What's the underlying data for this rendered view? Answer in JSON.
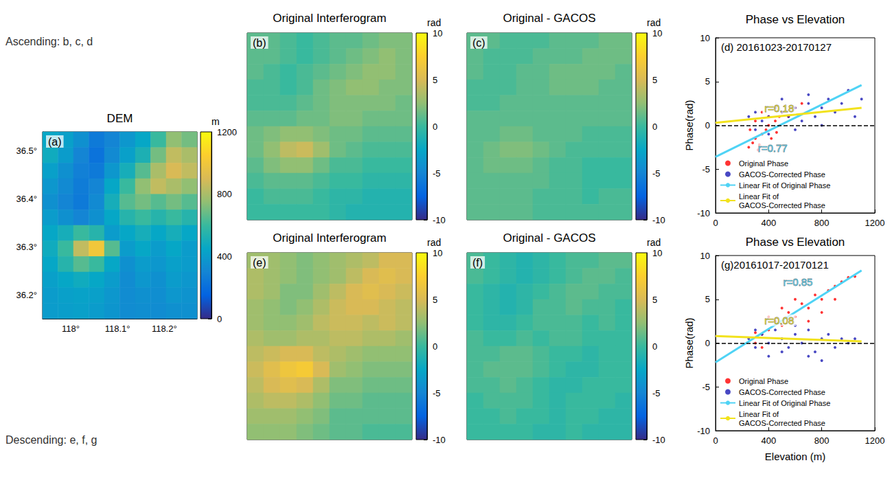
{
  "row_labels": [
    "Ascending: b, c, d",
    "Descending: e, f, g"
  ],
  "chart_data": [
    {
      "type": "heatmap",
      "label": "(a)",
      "title": "DEM",
      "xlim": [
        117.94,
        118.27
      ],
      "ylim": [
        36.15,
        36.54
      ],
      "xticks": [
        {
          "value": 118,
          "label": "118°"
        },
        {
          "value": 118.1,
          "label": "118.1°"
        },
        {
          "value": 118.2,
          "label": "118.2°"
        }
      ],
      "yticks": [
        {
          "value": 36.2,
          "label": "36.2°"
        },
        {
          "value": 36.3,
          "label": "36.3°"
        },
        {
          "value": 36.4,
          "label": "36.4°"
        },
        {
          "value": 36.5,
          "label": "36.5°"
        }
      ],
      "cells": [
        [
          450,
          420,
          350,
          250,
          300,
          380,
          450,
          600,
          750,
          700
        ],
        [
          480,
          400,
          300,
          220,
          320,
          420,
          520,
          700,
          850,
          800
        ],
        [
          420,
          350,
          280,
          250,
          380,
          500,
          650,
          800,
          900,
          850
        ],
        [
          380,
          320,
          260,
          300,
          450,
          600,
          750,
          850,
          800,
          750
        ],
        [
          350,
          300,
          250,
          320,
          500,
          650,
          700,
          650,
          700,
          650
        ],
        [
          400,
          350,
          300,
          350,
          450,
          550,
          600,
          550,
          600,
          550
        ],
        [
          450,
          500,
          600,
          550,
          400,
          450,
          500,
          450,
          500,
          450
        ],
        [
          480,
          600,
          850,
          1000,
          650,
          400,
          450,
          400,
          450,
          400
        ],
        [
          450,
          550,
          650,
          600,
          450,
          350,
          400,
          380,
          420,
          400
        ],
        [
          420,
          450,
          480,
          450,
          400,
          330,
          380,
          350,
          400,
          380
        ],
        [
          400,
          420,
          430,
          420,
          380,
          330,
          350,
          340,
          380,
          360
        ],
        [
          400,
          410,
          420,
          400,
          370,
          330,
          340,
          330,
          350,
          350
        ]
      ],
      "colorbar": {
        "range": [
          0,
          1200
        ],
        "ticks": [
          0,
          400,
          800,
          1200
        ],
        "label": "m"
      }
    },
    {
      "type": "heatmap",
      "label": "(b)",
      "title": "Original Interferogram",
      "tick_labels": false,
      "cells": [
        [
          1,
          1,
          0.5,
          0,
          0.5,
          1,
          1,
          1.5,
          2,
          2
        ],
        [
          1,
          1,
          0.5,
          0,
          0.5,
          1,
          1.5,
          2,
          2.5,
          2
        ],
        [
          1,
          0.5,
          0,
          0.5,
          1,
          1.5,
          2,
          2.5,
          2.5,
          2
        ],
        [
          0.5,
          0.5,
          0,
          0.5,
          1.5,
          2,
          2.5,
          2.5,
          2,
          2
        ],
        [
          0.5,
          0.5,
          0.5,
          1,
          1.5,
          2,
          2,
          2,
          2,
          1.5
        ],
        [
          1,
          1,
          1,
          1.5,
          1.5,
          2,
          2,
          1.5,
          1.5,
          1.5
        ],
        [
          1.5,
          2,
          2.5,
          2.5,
          2,
          1.5,
          1.5,
          1,
          1,
          1
        ],
        [
          1.5,
          2.5,
          4,
          4.5,
          3,
          1.5,
          1,
          0.5,
          0.5,
          0.5
        ],
        [
          1,
          2,
          2.5,
          2.5,
          1.5,
          0.5,
          0.5,
          0,
          0,
          0
        ],
        [
          0.5,
          1,
          1,
          1,
          0.5,
          0,
          0,
          -0.5,
          -0.5,
          -0.5
        ],
        [
          0,
          0.5,
          0.5,
          0.5,
          0,
          -0.5,
          -0.5,
          -1,
          -1,
          -1
        ],
        [
          0,
          0,
          0,
          0,
          0,
          -0.5,
          -1,
          -1,
          -1,
          -1
        ]
      ],
      "colorbar": {
        "range": [
          -10,
          10
        ],
        "ticks": [
          -10,
          -5,
          0,
          5,
          10
        ],
        "label": "rad"
      }
    },
    {
      "type": "heatmap",
      "label": "(c)",
      "title": "Original - GACOS",
      "tick_labels": false,
      "cells": [
        [
          1,
          1,
          0.5,
          0.5,
          0.5,
          1,
          1,
          1,
          1.5,
          1.5
        ],
        [
          1,
          0.5,
          0.5,
          0.5,
          1,
          1,
          1,
          1.5,
          1.5,
          1.5
        ],
        [
          1,
          0.5,
          0.5,
          1,
          1,
          1.5,
          1.5,
          1.5,
          1.5,
          1
        ],
        [
          0.5,
          0.5,
          0.5,
          1,
          1,
          1.5,
          1.5,
          1.5,
          1,
          1
        ],
        [
          0.5,
          0.5,
          1,
          1,
          1,
          1,
          1,
          1,
          1,
          1
        ],
        [
          1,
          1,
          1,
          1,
          1,
          1,
          1,
          1,
          1,
          1
        ],
        [
          1,
          1,
          1.5,
          1.5,
          1,
          1,
          1,
          0.5,
          0.5,
          0.5
        ],
        [
          1,
          1.5,
          2,
          2,
          1.5,
          1,
          0.5,
          0.5,
          0.5,
          0.5
        ],
        [
          1,
          1.5,
          1.5,
          1.5,
          1,
          0.5,
          0.5,
          0,
          0,
          0
        ],
        [
          1,
          1,
          1,
          1,
          1,
          0.5,
          0.5,
          0,
          0,
          0
        ],
        [
          1,
          1,
          1,
          1,
          0.5,
          0.5,
          0.5,
          0,
          0.5,
          0.5
        ],
        [
          1,
          1,
          1,
          1,
          0.5,
          0.5,
          0.5,
          0.5,
          0.5,
          0.5
        ]
      ],
      "colorbar": {
        "range": [
          -10,
          10
        ],
        "ticks": [
          -10,
          -5,
          0,
          5,
          10
        ],
        "label": "rad"
      }
    },
    {
      "type": "scatter",
      "label": "(d) 20161023-20170127",
      "title": "Phase vs Elevation",
      "ylabel": "Phase(rad)",
      "xlim": [
        0,
        1200
      ],
      "xticks": [
        0,
        400,
        800,
        1200
      ],
      "ylim": [
        -10,
        10
      ],
      "yticks": [
        -10,
        -5,
        0,
        5,
        10
      ],
      "grid": false,
      "legend": "lower left",
      "series": [
        {
          "name": "Original Phase",
          "type": "scatter",
          "marker": "circle",
          "color": "#ff0000",
          "x": [
            250,
            280,
            300,
            320,
            350,
            380,
            400,
            420,
            450,
            480,
            300,
            260,
            350,
            500,
            550,
            600,
            400,
            330,
            460,
            650
          ],
          "values": [
            -2.5,
            -2,
            -1.5,
            -2.8,
            -1,
            -0.5,
            0,
            -1.5,
            0.5,
            1,
            0.5,
            -0.5,
            1.5,
            1.5,
            1,
            2,
            1,
            -2.2,
            -0.8,
            2.5
          ]
        },
        {
          "name": "GACOS-Corrected Phase",
          "type": "scatter",
          "marker": "circle",
          "color": "#1a1ab4",
          "x": [
            250,
            300,
            350,
            400,
            450,
            500,
            550,
            600,
            650,
            700,
            750,
            800,
            850,
            900,
            950,
            1000,
            1050,
            300,
            400,
            500,
            600,
            700,
            800,
            1100
          ],
          "values": [
            1,
            1.5,
            0.5,
            1,
            2,
            1.5,
            1,
            2,
            0.5,
            2.5,
            1,
            2,
            3,
            1.5,
            2.5,
            4,
            1,
            -0.5,
            -1,
            3,
            -0.5,
            3.5,
            0,
            3
          ]
        },
        {
          "name": "Linear Fit of Original Phase",
          "type": "line",
          "line_style": "solid",
          "color": "#4fd3f5",
          "x": [
            0,
            1100
          ],
          "values": [
            -3.6,
            4.6
          ]
        },
        {
          "name": "Linear Fit of GACOS-Corrected Phase",
          "type": "line",
          "line_style": "solid",
          "color": "#f2e21d",
          "x": [
            0,
            1100
          ],
          "values": [
            0.3,
            2.0
          ]
        }
      ],
      "reference_line": {
        "y": 0,
        "color": "#000000",
        "line_style": "dashed"
      },
      "annotations": [
        {
          "text": "r=0.18",
          "x": 480,
          "y": 2.0,
          "color": "#f2e21d"
        },
        {
          "text": "r=0.77",
          "x": 430,
          "y": -2.6,
          "color": "#4fd3f5"
        }
      ]
    },
    {
      "type": "heatmap",
      "label": "(e)",
      "title": "Original Interferogram",
      "tick_labels": false,
      "cells": [
        [
          3,
          3,
          2.5,
          2,
          2.5,
          3,
          3.5,
          4,
          5,
          5
        ],
        [
          3.5,
          3,
          2.5,
          2,
          2.5,
          3,
          4,
          5,
          5.5,
          5
        ],
        [
          3.5,
          3,
          2,
          2,
          3,
          4,
          5,
          5.5,
          5,
          4.5
        ],
        [
          3,
          2.5,
          2,
          2.5,
          3.5,
          4.5,
          5,
          5,
          4.5,
          4
        ],
        [
          3,
          2.5,
          2.5,
          3,
          4,
          4.5,
          4.5,
          4,
          4.5,
          4
        ],
        [
          3.5,
          3,
          3,
          3.5,
          3.5,
          4,
          4,
          3.5,
          3.5,
          3
        ],
        [
          4,
          4.5,
          5,
          5,
          4,
          3.5,
          3,
          2.5,
          2.5,
          2.5
        ],
        [
          4.5,
          5.5,
          6.5,
          7,
          5,
          3,
          2.5,
          2,
          2,
          2
        ],
        [
          4,
          5,
          5.5,
          5,
          3.5,
          2,
          2,
          1.5,
          1.5,
          1.5
        ],
        [
          3.5,
          4,
          4,
          3.5,
          2.5,
          1.5,
          1.5,
          1,
          1,
          1
        ],
        [
          3,
          3,
          3,
          2.5,
          2,
          1,
          1,
          1,
          1,
          1
        ],
        [
          2.5,
          2.5,
          2.5,
          2,
          1.5,
          1,
          1,
          0.5,
          0.5,
          0.5
        ]
      ],
      "colorbar": {
        "range": [
          -10,
          10
        ],
        "ticks": [
          -10,
          -5,
          0,
          5,
          10
        ],
        "label": "rad"
      }
    },
    {
      "type": "heatmap",
      "label": "(f)",
      "title": "Original - GACOS",
      "tick_labels": false,
      "cells": [
        [
          0.5,
          0,
          -0.5,
          -1,
          -0.5,
          0,
          0.5,
          0.5,
          1,
          1
        ],
        [
          0.5,
          0,
          -0.5,
          -1,
          -0.5,
          0,
          0.5,
          1,
          1,
          0.5
        ],
        [
          0,
          -0.5,
          -1,
          -0.5,
          0,
          0.5,
          1,
          1,
          0.5,
          0.5
        ],
        [
          0,
          -0.5,
          -1,
          -0.5,
          0.5,
          0.5,
          1,
          0.5,
          0.5,
          0
        ],
        [
          0,
          -0.5,
          -0.5,
          0,
          0.5,
          0.5,
          0.5,
          0,
          0.5,
          0
        ],
        [
          0.5,
          0,
          0,
          0.5,
          0,
          0.5,
          0.5,
          0,
          0,
          0
        ],
        [
          0.5,
          0.5,
          1,
          1,
          0.5,
          0,
          0,
          -0.5,
          0,
          0
        ],
        [
          0.5,
          1,
          1,
          1,
          0.5,
          0,
          -0.5,
          -0.5,
          0,
          0
        ],
        [
          0.5,
          0.5,
          1,
          0.5,
          0,
          -0.5,
          -0.5,
          0,
          0,
          0
        ],
        [
          0,
          0.5,
          0.5,
          0.5,
          0,
          -0.5,
          0,
          0,
          0,
          -0.5
        ],
        [
          0,
          0,
          0.5,
          0,
          0,
          -0.5,
          0,
          0,
          -0.5,
          -0.5
        ],
        [
          0,
          0,
          0,
          0,
          -0.5,
          -0.5,
          0,
          -0.5,
          -0.5,
          -0.5
        ]
      ],
      "colorbar": {
        "range": [
          -10,
          10
        ],
        "ticks": [
          -10,
          -5,
          0,
          5,
          10
        ],
        "label": "rad"
      }
    },
    {
      "type": "scatter",
      "label": "(g)20161017-20170121",
      "title": "Phase vs Elevation",
      "ylabel": "Phase(rad)",
      "xlabel": "Elevation (m)",
      "xlim": [
        0,
        1200
      ],
      "xticks": [
        0,
        400,
        800,
        1200
      ],
      "ylim": [
        -10,
        10
      ],
      "yticks": [
        -10,
        -5,
        0,
        5,
        10
      ],
      "grid": false,
      "legend": "lower left",
      "series": [
        {
          "name": "Original Phase",
          "type": "scatter",
          "marker": "circle",
          "color": "#ff0000",
          "x": [
            300,
            350,
            400,
            450,
            500,
            550,
            600,
            650,
            700,
            750,
            800,
            850,
            900,
            950,
            1000,
            1050,
            400,
            500,
            600,
            700,
            800,
            350,
            300,
            900
          ],
          "values": [
            0,
            1,
            1.5,
            2.5,
            2,
            3.5,
            3,
            4.5,
            4,
            5.5,
            5,
            6,
            6.5,
            7,
            7.5,
            7.6,
            3,
            4,
            5,
            2.5,
            3.5,
            -0.5,
            1.2,
            5
          ]
        },
        {
          "name": "GACOS-Corrected Phase",
          "type": "scatter",
          "marker": "circle",
          "color": "#1a1ab4",
          "x": [
            250,
            300,
            350,
            400,
            450,
            500,
            550,
            600,
            650,
            700,
            750,
            800,
            850,
            900,
            950,
            1000,
            300,
            400,
            500,
            600,
            700,
            800,
            1050
          ],
          "values": [
            0.5,
            -0.5,
            1,
            0,
            1.5,
            0.5,
            -0.5,
            1,
            0,
            1.5,
            -1,
            0.5,
            1,
            -0.5,
            0.5,
            0,
            1.5,
            -1.5,
            -1,
            2,
            -1.5,
            -2,
            0.5
          ]
        },
        {
          "name": "Linear Fit of Original Phase",
          "type": "line",
          "line_style": "solid",
          "color": "#4fd3f5",
          "x": [
            0,
            1100
          ],
          "values": [
            -2.2,
            8.3
          ]
        },
        {
          "name": "Linear Fit of GACOS-Corrected Phase",
          "type": "line",
          "line_style": "solid",
          "color": "#f2e21d",
          "x": [
            0,
            1100
          ],
          "values": [
            0.8,
            0.2
          ]
        }
      ],
      "reference_line": {
        "y": 0,
        "color": "#000000",
        "line_style": "dashed"
      },
      "annotations": [
        {
          "text": "r=0.85",
          "x": 620,
          "y": 7.0,
          "color": "#4fd3f5"
        },
        {
          "text": "r=0.08",
          "x": 480,
          "y": 2.6,
          "color": "#f2e21d"
        }
      ]
    }
  ]
}
